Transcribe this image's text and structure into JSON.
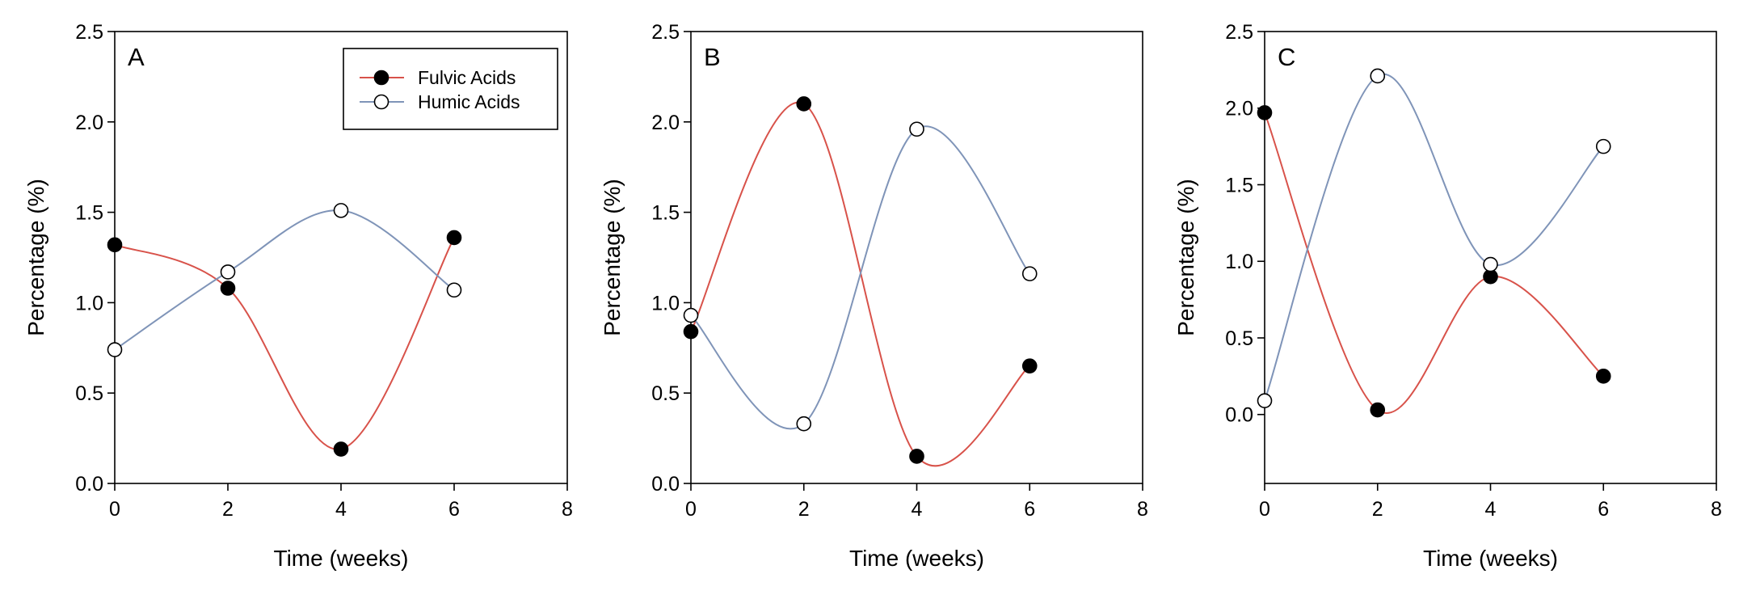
{
  "figure_title": "",
  "legend_series": [
    {
      "name": "Fulvic Acids",
      "marker": "filled-circle",
      "line_color": "#d8524a"
    },
    {
      "name": "Humic Acids",
      "marker": "open-circle",
      "line_color": "#7f94b8"
    }
  ],
  "chart_data": [
    {
      "type": "line",
      "panel_label": "A",
      "title": "",
      "xlabel": "Time (weeks)",
      "ylabel": "Percentage (%)",
      "xlim": [
        0,
        8
      ],
      "ylim": [
        0,
        2.5
      ],
      "xticks": [
        0,
        2,
        4,
        6,
        8
      ],
      "yticks": [
        0.0,
        0.5,
        1.0,
        1.5,
        2.0,
        2.5
      ],
      "xtick_labels": [
        "0",
        "2",
        "4",
        "6",
        "8"
      ],
      "ytick_labels": [
        "0.0",
        "0.5",
        "1.0",
        "1.5",
        "2.0",
        "2.5"
      ],
      "grid": false,
      "legend": "top-right",
      "x": [
        0,
        2,
        4,
        6
      ],
      "series": [
        {
          "name": "Fulvic Acids",
          "values": [
            1.32,
            1.08,
            0.19,
            1.36
          ]
        },
        {
          "name": "Humic Acids",
          "values": [
            0.74,
            1.17,
            1.51,
            1.07
          ]
        }
      ]
    },
    {
      "type": "line",
      "panel_label": "B",
      "title": "",
      "xlabel": "Time (weeks)",
      "ylabel": "Percentage (%)",
      "xlim": [
        0,
        8
      ],
      "ylim": [
        0,
        2.5
      ],
      "xticks": [
        0,
        2,
        4,
        6,
        8
      ],
      "yticks": [
        0.0,
        0.5,
        1.0,
        1.5,
        2.0,
        2.5
      ],
      "xtick_labels": [
        "0",
        "2",
        "4",
        "6",
        "8"
      ],
      "ytick_labels": [
        "0.0",
        "0.5",
        "1.0",
        "1.5",
        "2.0",
        "2.5"
      ],
      "grid": false,
      "legend": "none",
      "x": [
        0,
        2,
        4,
        6
      ],
      "series": [
        {
          "name": "Fulvic Acids",
          "values": [
            0.84,
            2.1,
            0.15,
            0.65
          ]
        },
        {
          "name": "Humic Acids",
          "values": [
            0.93,
            0.33,
            1.96,
            1.16
          ]
        }
      ]
    },
    {
      "type": "line",
      "panel_label": "C",
      "title": "",
      "xlabel": "Time (weeks)",
      "ylabel": "Percentage (%)",
      "xlim": [
        0,
        8
      ],
      "ylim": [
        -0.45,
        2.5
      ],
      "xticks": [
        0,
        2,
        4,
        6,
        8
      ],
      "yticks": [
        0.0,
        0.5,
        1.0,
        1.5,
        2.0,
        2.5
      ],
      "xtick_labels": [
        "0",
        "2",
        "4",
        "6",
        "8"
      ],
      "ytick_labels": [
        "0.0",
        "0.5",
        "1.0",
        "1.5",
        "2.0",
        "2.5"
      ],
      "grid": false,
      "legend": "none",
      "x": [
        0,
        2,
        4,
        6
      ],
      "series": [
        {
          "name": "Fulvic Acids",
          "values": [
            1.97,
            0.03,
            0.9,
            0.25
          ]
        },
        {
          "name": "Humic Acids",
          "values": [
            0.09,
            2.21,
            0.98,
            1.75
          ]
        }
      ]
    }
  ]
}
